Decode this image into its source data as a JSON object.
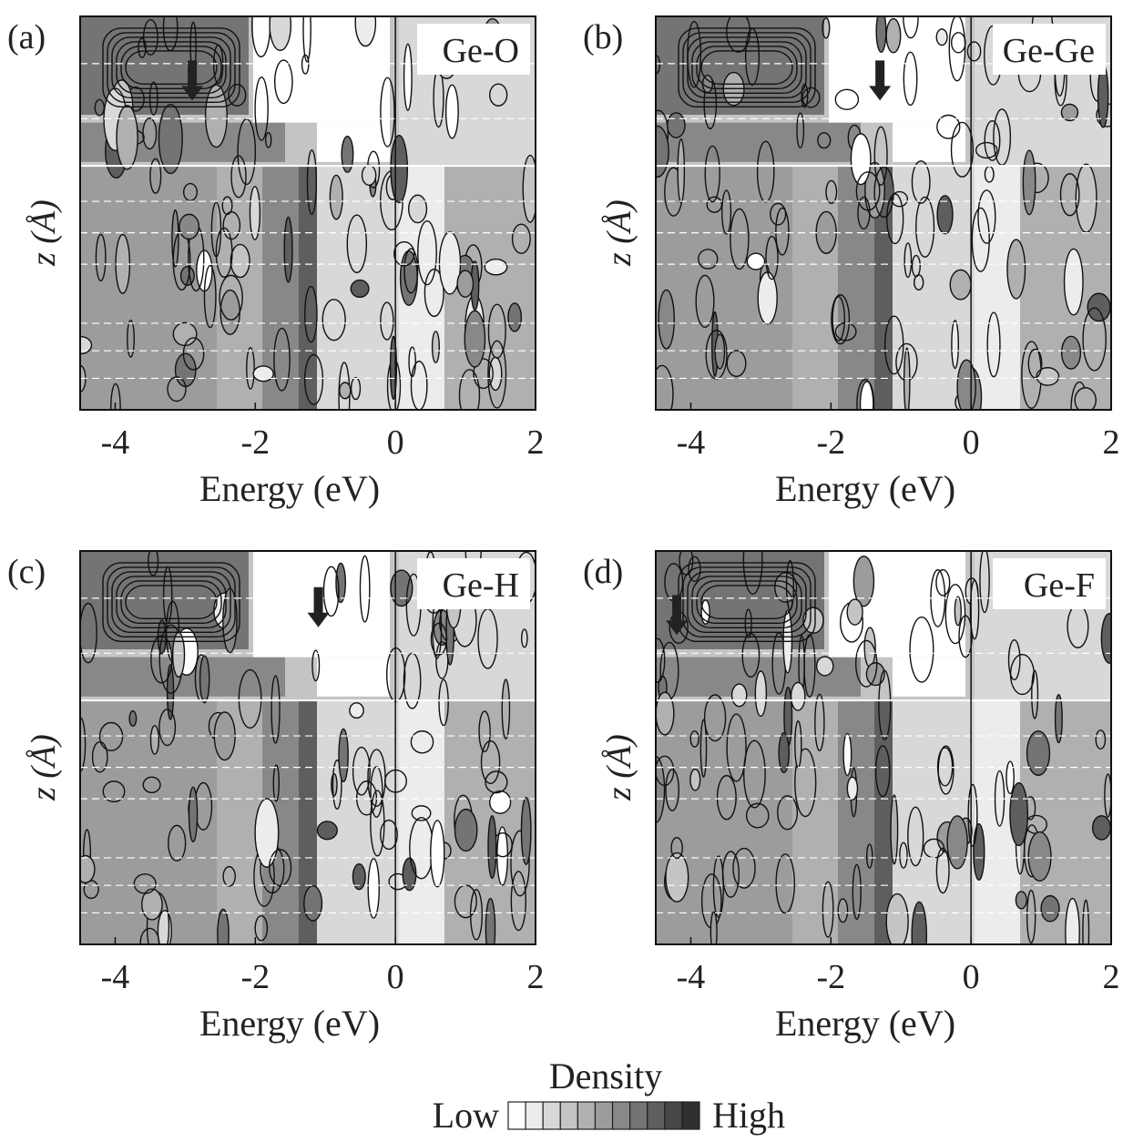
{
  "chart_data": [
    {
      "type": "contour",
      "panel_label": "(a)",
      "label": "Ge-O",
      "xlabel": "Energy (eV)",
      "ylabel": "z (Å)",
      "xlim": [
        -4.5,
        2
      ],
      "xticks": [
        -4,
        -2,
        0,
        2
      ],
      "reference_line_x": 0,
      "arrow_x": -2.9
    },
    {
      "type": "contour",
      "panel_label": "(b)",
      "label": "Ge-Ge",
      "xlabel": "Energy (eV)",
      "ylabel": "z (Å)",
      "xlim": [
        -4.5,
        2
      ],
      "xticks": [
        -4,
        -2,
        0,
        2
      ],
      "reference_line_x": 0,
      "arrow_x": -1.3
    },
    {
      "type": "contour",
      "panel_label": "(c)",
      "label": "Ge-H",
      "xlabel": "Energy (eV)",
      "ylabel": "z (Å)",
      "xlim": [
        -4.5,
        2
      ],
      "xticks": [
        -4,
        -2,
        0,
        2
      ],
      "reference_line_x": 0,
      "arrow_x": -1.1
    },
    {
      "type": "contour",
      "panel_label": "(d)",
      "label": "Ge-F",
      "xlabel": "Energy (eV)",
      "ylabel": "z (Å)",
      "xlim": [
        -4.5,
        2
      ],
      "xticks": [
        -4,
        -2,
        0,
        2
      ],
      "reference_line_x": 0,
      "arrow_x": -4.2
    }
  ],
  "colorbar": {
    "title": "Density",
    "low_label": "Low",
    "high_label": "High",
    "colors": [
      "#ffffff",
      "#ececec",
      "#d8d8d8",
      "#c4c4c4",
      "#b0b0b0",
      "#9c9c9c",
      "#888888",
      "#747474",
      "#5e5e5e",
      "#474747",
      "#303030"
    ]
  }
}
